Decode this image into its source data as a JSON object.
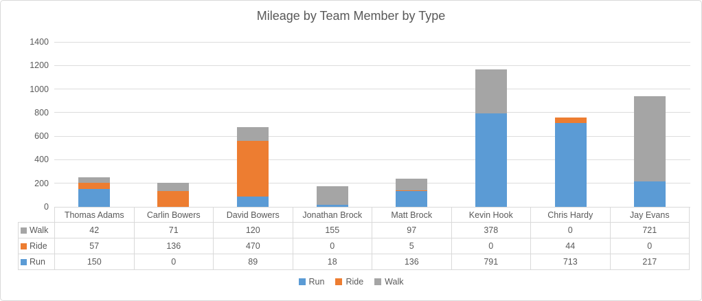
{
  "chart_data": {
    "type": "bar",
    "stacked": true,
    "title": "Mileage by Team Member by Type",
    "categories": [
      "Thomas Adams",
      "Carlin Bowers",
      "David Bowers",
      "Jonathan Brock",
      "Matt Brock",
      "Kevin Hook",
      "Chris Hardy",
      "Jay Evans"
    ],
    "series": [
      {
        "name": "Run",
        "color": "#5b9bd5",
        "values": [
          150,
          0,
          89,
          18,
          136,
          791,
          713,
          217
        ]
      },
      {
        "name": "Ride",
        "color": "#ed7d31",
        "values": [
          57,
          136,
          470,
          0,
          5,
          0,
          44,
          0
        ]
      },
      {
        "name": "Walk",
        "color": "#a5a5a5",
        "values": [
          42,
          71,
          120,
          155,
          97,
          378,
          0,
          721
        ]
      }
    ],
    "xlabel": "",
    "ylabel": "",
    "ylim": [
      0,
      1400
    ],
    "yticks": [
      0,
      200,
      400,
      600,
      800,
      1000,
      1200,
      1400
    ],
    "grid": true,
    "legend_position": "bottom",
    "legend_order": [
      "Run",
      "Ride",
      "Walk"
    ],
    "data_table": {
      "shown": true,
      "row_order": [
        "Walk",
        "Ride",
        "Run"
      ]
    }
  },
  "colors": {
    "text": "#595959",
    "gridline": "#dcdcdc",
    "table_border": "#d9d9d9"
  }
}
